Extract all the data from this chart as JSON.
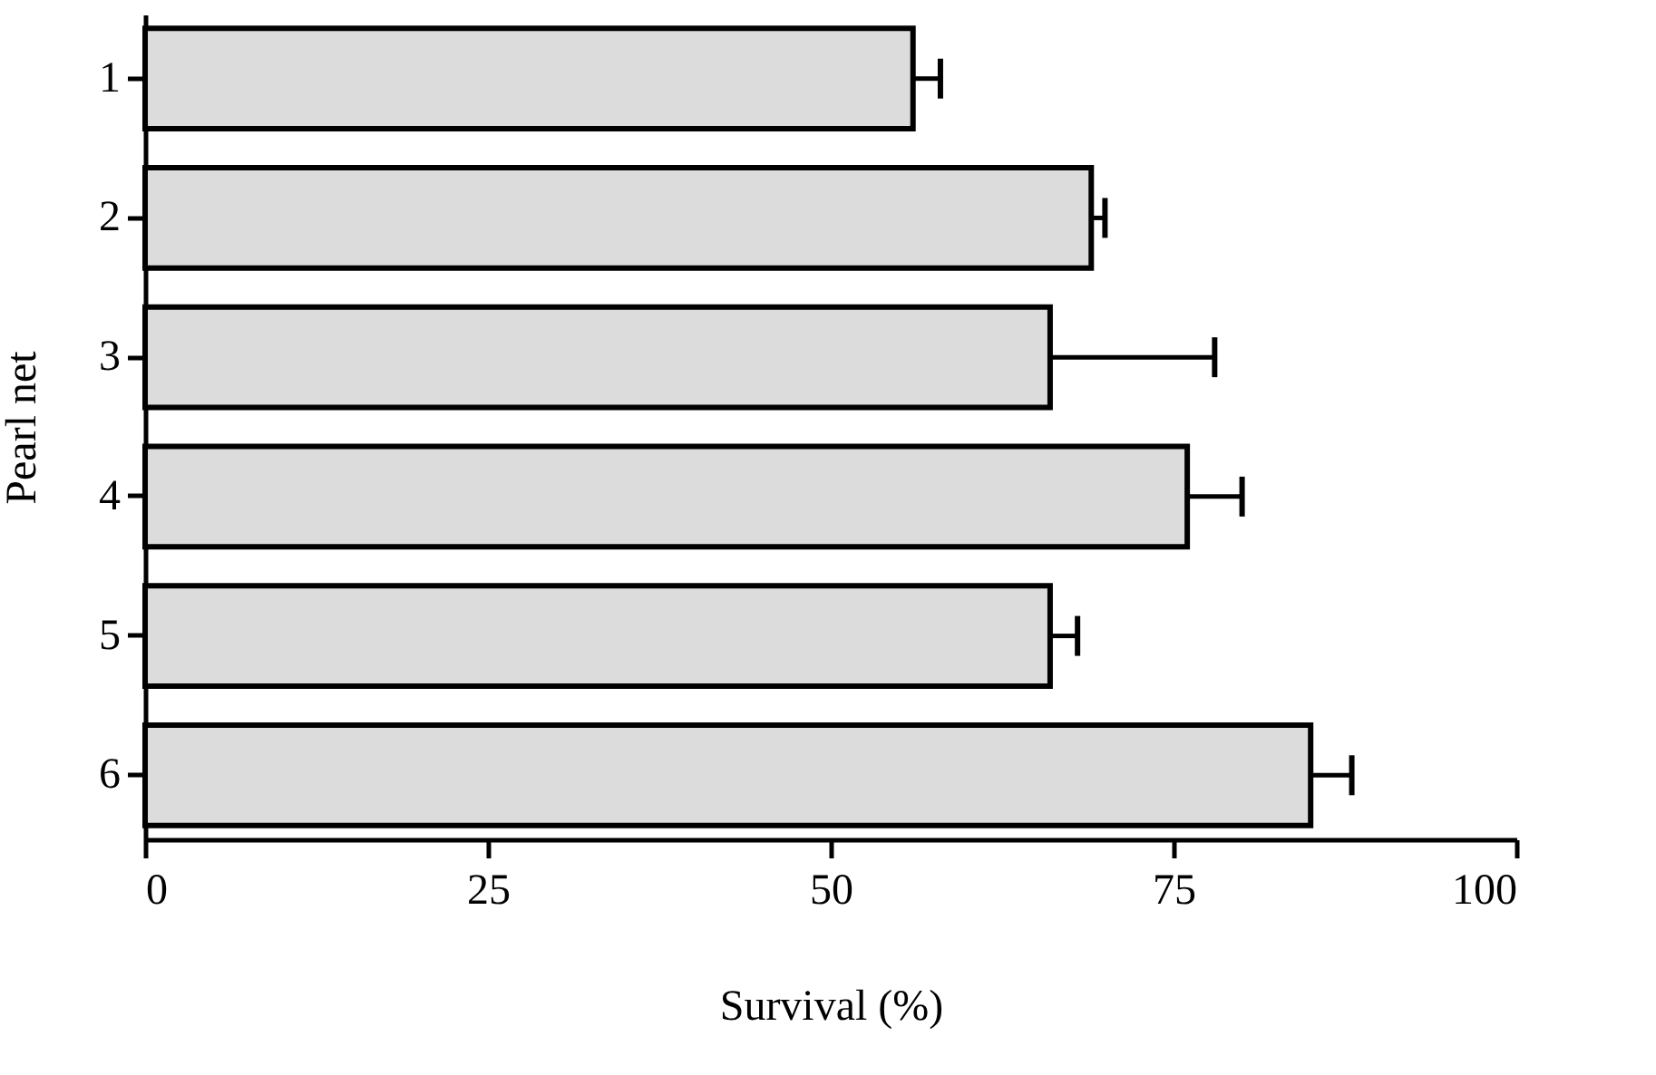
{
  "chart_data": {
    "type": "bar",
    "orientation": "horizontal",
    "xlabel": "Survival (%)",
    "ylabel": "Pearl net",
    "categories": [
      "1",
      "2",
      "3",
      "4",
      "5",
      "6"
    ],
    "values": [
      56,
      69,
      66,
      76,
      66,
      85
    ],
    "errors": [
      2,
      1,
      12,
      4,
      2,
      3
    ],
    "color": "#dcdcdc",
    "xlim": [
      0,
      100
    ],
    "xticks": [
      0,
      25,
      50,
      75,
      100
    ],
    "grid": false
  }
}
